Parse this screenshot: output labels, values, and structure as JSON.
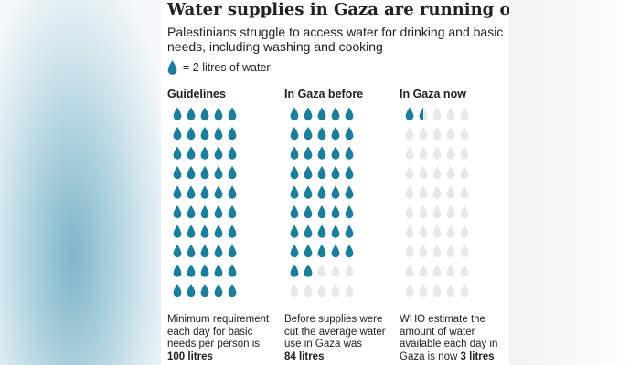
{
  "title": "Water supplies in Gaza are running out",
  "subtitle": "Palestinians struggle to access water for drinking and basic needs, including washing and cooking",
  "legend": {
    "icon": "water-drop-icon",
    "text": "= 2 litres of water"
  },
  "colors": {
    "filled_drop": "#1b7f9c",
    "empty_drop": "#e8e8e8",
    "text": "#222222"
  },
  "chart_data": {
    "type": "pictogram",
    "unit": "litres",
    "litres_per_icon": 2,
    "icons_per_column": 50,
    "columns": [
      {
        "header": "Guidelines",
        "value": 100,
        "caption_lines": [
          "Minimum requirement",
          "each day for basic",
          "needs per person is"
        ],
        "value_label": "100 litres"
      },
      {
        "header": "In Gaza before",
        "value": 84,
        "caption_lines": [
          "Before supplies were",
          "cut the average water",
          "use in Gaza was"
        ],
        "value_label": "84 litres"
      },
      {
        "header": "In Gaza now",
        "value": 3,
        "caption_lines": [
          "WHO estimate the",
          "amount of water",
          "available each day in",
          "Gaza is now"
        ],
        "value_label": "3 litres"
      }
    ]
  }
}
